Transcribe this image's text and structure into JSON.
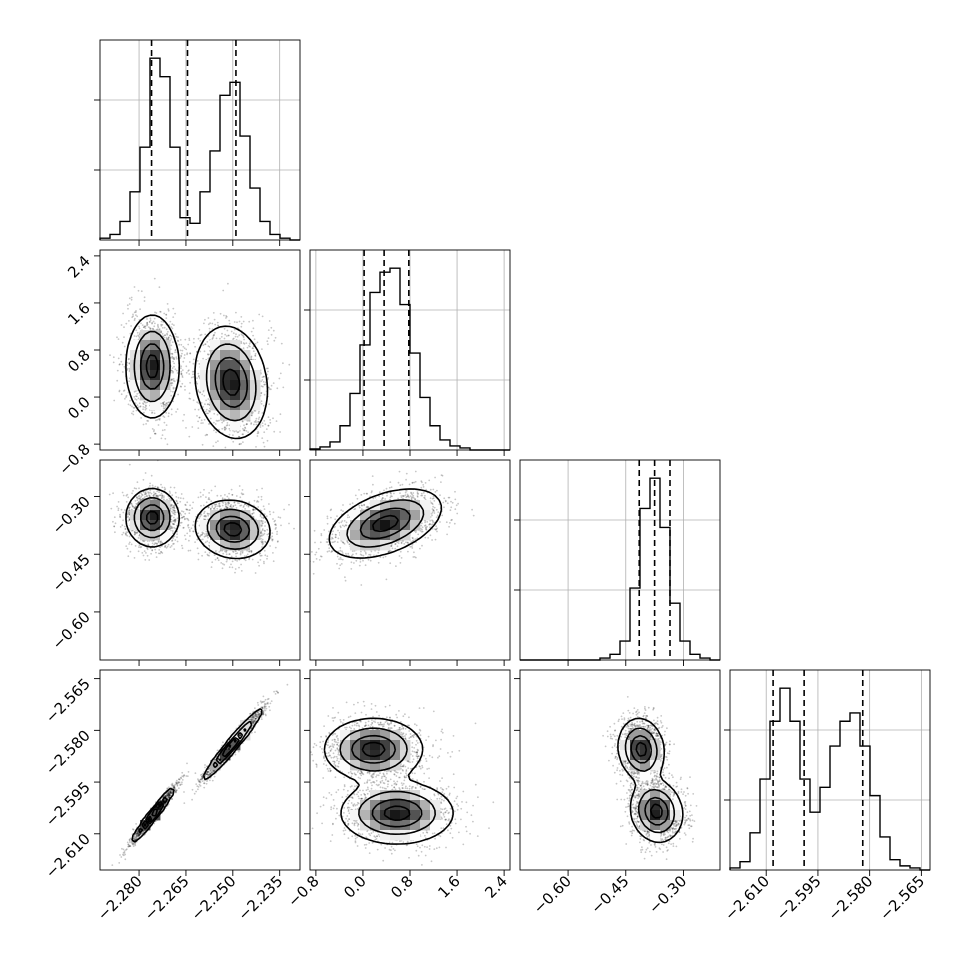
{
  "chart_data": {
    "type": "corner",
    "parameters": [
      {
        "index": 0,
        "range": [
          -2.2925,
          -2.2285
        ],
        "ticks": [
          -2.28,
          -2.265,
          -2.25,
          -2.235
        ],
        "tick_labels": [
          "−2.280",
          "−2.265",
          "−2.250",
          "−2.235"
        ]
      },
      {
        "index": 1,
        "range": [
          -0.9,
          2.5
        ],
        "ticks": [
          -0.8,
          0.0,
          0.8,
          1.6,
          2.4
        ],
        "tick_labels": [
          "−0.8",
          "0.0",
          "0.8",
          "1.6",
          "2.4"
        ]
      },
      {
        "index": 2,
        "range": [
          -0.725,
          -0.205
        ],
        "ticks": [
          -0.6,
          -0.45,
          -0.3
        ],
        "tick_labels": [
          "−0.60",
          "−0.45",
          "−0.30"
        ]
      },
      {
        "index": 3,
        "range": [
          -2.6205,
          -2.5625
        ],
        "ticks": [
          -2.61,
          -2.595,
          -2.58,
          -2.565
        ],
        "tick_labels": [
          "−2.610",
          "−2.595",
          "−2.580",
          "−2.565"
        ]
      }
    ],
    "histograms": [
      {
        "param": 0,
        "quantiles": [
          -2.276,
          -2.2645,
          -2.249
        ],
        "bin_edges": [
          -2.2925,
          -2.2893,
          -2.2861,
          -2.2829,
          -2.2797,
          -2.2765,
          -2.2733,
          -2.2701,
          -2.2669,
          -2.2637,
          -2.2605,
          -2.2573,
          -2.2541,
          -2.2509,
          -2.2477,
          -2.2445,
          -2.2413,
          -2.2381,
          -2.2349,
          -2.2317,
          -2.2285
        ],
        "counts": [
          1,
          3,
          10,
          26,
          50,
          98,
          88,
          50,
          12,
          9,
          26,
          48,
          78,
          85,
          56,
          28,
          10,
          3,
          1,
          0
        ]
      },
      {
        "param": 1,
        "quantiles": [
          0.02,
          0.36,
          0.78
        ],
        "bin_edges": [
          -0.9,
          -0.73,
          -0.56,
          -0.39,
          -0.22,
          -0.05,
          0.12,
          0.29,
          0.46,
          0.63,
          0.8,
          0.97,
          1.14,
          1.31,
          1.48,
          1.65,
          1.82,
          1.99,
          2.16,
          2.33,
          2.5
        ],
        "counts": [
          0.5,
          1.5,
          4,
          12,
          28,
          52,
          78,
          88,
          90,
          72,
          48,
          26,
          12,
          5,
          2,
          1,
          0,
          0,
          0,
          0
        ]
      },
      {
        "param": 2,
        "quantiles": [
          -0.415,
          -0.375,
          -0.335
        ],
        "bin_edges": [
          -0.725,
          -0.699,
          -0.673,
          -0.647,
          -0.621,
          -0.595,
          -0.569,
          -0.543,
          -0.517,
          -0.491,
          -0.465,
          -0.439,
          -0.413,
          -0.387,
          -0.361,
          -0.335,
          -0.309,
          -0.283,
          -0.257,
          -0.231,
          -0.205
        ],
        "counts": [
          0,
          0,
          0,
          0,
          0,
          0,
          0,
          0,
          1,
          3,
          10,
          38,
          80,
          96,
          70,
          30,
          10,
          3,
          1,
          0
        ]
      },
      {
        "param": 3,
        "quantiles": [
          -2.608,
          -2.599,
          -2.582
        ],
        "bin_edges": [
          -2.6205,
          -2.6176,
          -2.6147,
          -2.6118,
          -2.6089,
          -2.606,
          -2.6031,
          -2.6002,
          -2.5973,
          -2.5944,
          -2.5915,
          -2.5886,
          -2.5857,
          -2.5828,
          -2.5799,
          -2.577,
          -2.5741,
          -2.5712,
          -2.5683,
          -2.5654,
          -2.5625
        ],
        "counts": [
          1,
          4,
          18,
          44,
          72,
          88,
          72,
          44,
          28,
          40,
          60,
          72,
          76,
          60,
          36,
          16,
          5,
          2,
          1,
          0
        ]
      }
    ],
    "density_panels": [
      {
        "x_param": 0,
        "y_param": 1,
        "modes": [
          {
            "x": -2.2758,
            "y": 0.52,
            "sx": 0.0042,
            "sy": 0.44,
            "r": 0.0
          },
          {
            "x": -2.2505,
            "y": 0.25,
            "sx": 0.0058,
            "sy": 0.48,
            "r": -0.15
          }
        ]
      },
      {
        "x_param": 0,
        "y_param": 2,
        "modes": [
          {
            "x": -2.2758,
            "y": -0.355,
            "sx": 0.0042,
            "sy": 0.038,
            "r": 0.0
          },
          {
            "x": -2.25,
            "y": -0.385,
            "sx": 0.006,
            "sy": 0.038,
            "r": -0.1
          }
        ]
      },
      {
        "x_param": 0,
        "y_param": 3,
        "modes": [
          {
            "x": -2.2755,
            "y": -2.6045,
            "sx": 0.0036,
            "sy": 0.0042,
            "r": 0.97
          },
          {
            "x": -2.25,
            "y": -2.584,
            "sx": 0.0048,
            "sy": 0.0052,
            "r": 0.97
          }
        ]
      },
      {
        "x_param": 1,
        "y_param": 2,
        "modes": [
          {
            "x": 0.38,
            "y": -0.37,
            "sx": 0.48,
            "sy": 0.045,
            "r": 0.45
          }
        ]
      },
      {
        "x_param": 1,
        "y_param": 3,
        "modes": [
          {
            "x": 0.18,
            "y": -2.5855,
            "sx": 0.42,
            "sy": 0.0045,
            "r": 0.0
          },
          {
            "x": 0.58,
            "y": -2.604,
            "sx": 0.48,
            "sy": 0.0045,
            "r": 0.0
          }
        ]
      },
      {
        "x_param": 2,
        "y_param": 3,
        "modes": [
          {
            "x": -0.41,
            "y": -2.5855,
            "sx": 0.03,
            "sy": 0.0045,
            "r": -0.1
          },
          {
            "x": -0.37,
            "y": -2.6035,
            "sx": 0.034,
            "sy": 0.0045,
            "r": -0.1
          }
        ]
      }
    ]
  }
}
